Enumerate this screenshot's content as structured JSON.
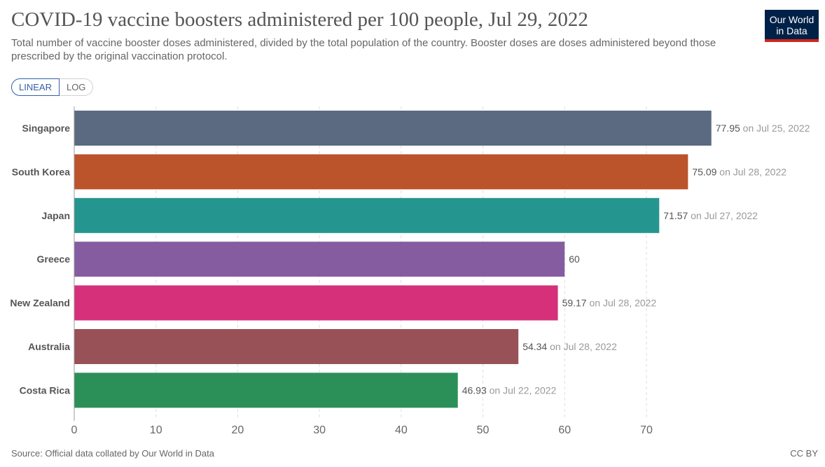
{
  "header": {
    "title": "COVID-19 vaccine boosters administered per 100 people, Jul 29, 2022",
    "subtitle": "Total number of vaccine booster doses administered, divided by the total population of the country. Booster doses are doses administered beyond those prescribed by the original vaccination protocol.",
    "logo_line1": "Our World",
    "logo_line2": "in Data"
  },
  "controls": {
    "linear_label": "LINEAR",
    "log_label": "LOG"
  },
  "footer": {
    "source": "Source: Official data collated by Our World in Data",
    "license": "CC BY"
  },
  "colors": {
    "brand_navy": "#002147",
    "brand_red": "#ce261e"
  },
  "chart_data": {
    "type": "bar",
    "orientation": "horizontal",
    "title": "COVID-19 vaccine boosters administered per 100 people, Jul 29, 2022",
    "categories": [
      "Singapore",
      "South Korea",
      "Japan",
      "Greece",
      "New Zealand",
      "Australia",
      "Costa Rica"
    ],
    "values": [
      77.95,
      75.09,
      71.57,
      60,
      59.17,
      54.34,
      46.93
    ],
    "value_labels": [
      "77.95",
      "75.09",
      "71.57",
      "60",
      "59.17",
      "54.34",
      "46.93"
    ],
    "date_labels": [
      "on Jul 25, 2022",
      "on Jul 28, 2022",
      "on Jul 27, 2022",
      "",
      "on Jul 28, 2022",
      "on Jul 28, 2022",
      "on Jul 22, 2022"
    ],
    "colors": [
      "#5b6a80",
      "#bb532b",
      "#25968f",
      "#855ca0",
      "#d6307a",
      "#985157",
      "#2b9058"
    ],
    "x_ticks": [
      0,
      10,
      20,
      30,
      40,
      50,
      60,
      70
    ],
    "xlim": [
      0,
      78.4
    ],
    "grid": true,
    "xlabel": "",
    "ylabel": ""
  }
}
